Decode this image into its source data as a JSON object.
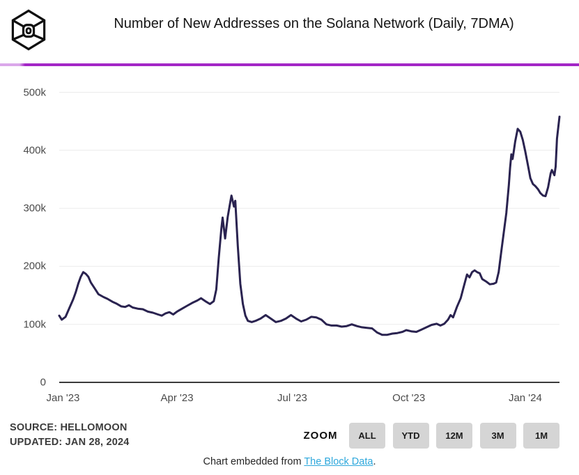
{
  "header": {
    "title": "Number of New Addresses on the Solana Network (Daily, 7DMA)",
    "logo": "the-block-logo"
  },
  "colors": {
    "accent_divider": "#A326C6",
    "series_line": "#2A2350",
    "link_blue": "#2EA8DC",
    "button_bg": "#D5D5D5",
    "grid": "#EBEBEB",
    "axis": "#3B3B3B",
    "tick_text": "#4B4B4B"
  },
  "chart_data": {
    "type": "line",
    "title": "Number of New Addresses on the Solana Network (Daily, 7DMA)",
    "xlabel": "",
    "ylabel": "",
    "ylim": [
      0,
      500000
    ],
    "x_range": [
      "2022-12-29",
      "2024-01-28"
    ],
    "grid": "horizontal",
    "legend": "none",
    "y_ticks": [
      {
        "label": "0",
        "value": 0
      },
      {
        "label": "100k",
        "value": 100000
      },
      {
        "label": "200k",
        "value": 200000
      },
      {
        "label": "300k",
        "value": 300000
      },
      {
        "label": "400k",
        "value": 400000
      },
      {
        "label": "500k",
        "value": 500000
      }
    ],
    "x_ticks": [
      {
        "label": "Jan '23",
        "date": "2023-01-01"
      },
      {
        "label": "Apr '23",
        "date": "2023-04-01"
      },
      {
        "label": "Jul '23",
        "date": "2023-07-01"
      },
      {
        "label": "Oct '23",
        "date": "2023-10-01"
      },
      {
        "label": "Jan '24",
        "date": "2024-01-01"
      }
    ],
    "series": [
      {
        "name": "new-addresses-7dma",
        "color": "#2A2350",
        "points": [
          [
            "2022-12-29",
            115000
          ],
          [
            "2022-12-31",
            108000
          ],
          [
            "2023-01-03",
            113000
          ],
          [
            "2023-01-06",
            128000
          ],
          [
            "2023-01-09",
            143000
          ],
          [
            "2023-01-11",
            155000
          ],
          [
            "2023-01-13",
            170000
          ],
          [
            "2023-01-15",
            182000
          ],
          [
            "2023-01-17",
            190000
          ],
          [
            "2023-01-19",
            187000
          ],
          [
            "2023-01-21",
            182000
          ],
          [
            "2023-01-23",
            172000
          ],
          [
            "2023-01-26",
            162000
          ],
          [
            "2023-01-29",
            152000
          ],
          [
            "2023-02-02",
            147000
          ],
          [
            "2023-02-05",
            144000
          ],
          [
            "2023-02-09",
            139000
          ],
          [
            "2023-02-12",
            136000
          ],
          [
            "2023-02-16",
            131000
          ],
          [
            "2023-02-19",
            130000
          ],
          [
            "2023-02-22",
            133000
          ],
          [
            "2023-02-25",
            129000
          ],
          [
            "2023-03-01",
            127000
          ],
          [
            "2023-03-05",
            126000
          ],
          [
            "2023-03-09",
            122000
          ],
          [
            "2023-03-13",
            120000
          ],
          [
            "2023-03-17",
            117000
          ],
          [
            "2023-03-20",
            115000
          ],
          [
            "2023-03-23",
            119000
          ],
          [
            "2023-03-26",
            121000
          ],
          [
            "2023-03-29",
            117000
          ],
          [
            "2023-04-01",
            122000
          ],
          [
            "2023-04-05",
            127000
          ],
          [
            "2023-04-09",
            132000
          ],
          [
            "2023-04-13",
            137000
          ],
          [
            "2023-04-17",
            141000
          ],
          [
            "2023-04-20",
            145000
          ],
          [
            "2023-04-24",
            139000
          ],
          [
            "2023-04-27",
            135000
          ],
          [
            "2023-04-30",
            140000
          ],
          [
            "2023-05-02",
            160000
          ],
          [
            "2023-05-04",
            215000
          ],
          [
            "2023-05-06",
            265000
          ],
          [
            "2023-05-07",
            284000
          ],
          [
            "2023-05-09",
            248000
          ],
          [
            "2023-05-11",
            285000
          ],
          [
            "2023-05-13",
            310000
          ],
          [
            "2023-05-14",
            322000
          ],
          [
            "2023-05-16",
            303000
          ],
          [
            "2023-05-17",
            313000
          ],
          [
            "2023-05-19",
            235000
          ],
          [
            "2023-05-21",
            170000
          ],
          [
            "2023-05-23",
            135000
          ],
          [
            "2023-05-25",
            115000
          ],
          [
            "2023-05-27",
            106000
          ],
          [
            "2023-05-30",
            104000
          ],
          [
            "2023-06-02",
            106000
          ],
          [
            "2023-06-06",
            110000
          ],
          [
            "2023-06-10",
            116000
          ],
          [
            "2023-06-14",
            110000
          ],
          [
            "2023-06-18",
            104000
          ],
          [
            "2023-06-22",
            106000
          ],
          [
            "2023-06-26",
            110000
          ],
          [
            "2023-06-30",
            116000
          ],
          [
            "2023-07-04",
            110000
          ],
          [
            "2023-07-08",
            105000
          ],
          [
            "2023-07-12",
            108000
          ],
          [
            "2023-07-16",
            113000
          ],
          [
            "2023-07-20",
            112000
          ],
          [
            "2023-07-24",
            108000
          ],
          [
            "2023-07-28",
            100000
          ],
          [
            "2023-08-01",
            98000
          ],
          [
            "2023-08-05",
            98000
          ],
          [
            "2023-08-09",
            96000
          ],
          [
            "2023-08-13",
            97000
          ],
          [
            "2023-08-17",
            100000
          ],
          [
            "2023-08-21",
            97000
          ],
          [
            "2023-08-25",
            95000
          ],
          [
            "2023-08-29",
            94000
          ],
          [
            "2023-09-02",
            93000
          ],
          [
            "2023-09-06",
            86000
          ],
          [
            "2023-09-10",
            82000
          ],
          [
            "2023-09-14",
            82000
          ],
          [
            "2023-09-18",
            84000
          ],
          [
            "2023-09-22",
            85000
          ],
          [
            "2023-09-26",
            87000
          ],
          [
            "2023-09-29",
            90000
          ],
          [
            "2023-10-03",
            88000
          ],
          [
            "2023-10-07",
            87000
          ],
          [
            "2023-10-11",
            91000
          ],
          [
            "2023-10-15",
            95000
          ],
          [
            "2023-10-19",
            99000
          ],
          [
            "2023-10-23",
            101000
          ],
          [
            "2023-10-26",
            98000
          ],
          [
            "2023-10-29",
            101000
          ],
          [
            "2023-11-01",
            108000
          ],
          [
            "2023-11-03",
            116000
          ],
          [
            "2023-11-05",
            112000
          ],
          [
            "2023-11-08",
            130000
          ],
          [
            "2023-11-11",
            145000
          ],
          [
            "2023-11-13",
            162000
          ],
          [
            "2023-11-15",
            178000
          ],
          [
            "2023-11-16",
            186000
          ],
          [
            "2023-11-18",
            181000
          ],
          [
            "2023-11-20",
            190000
          ],
          [
            "2023-11-22",
            193000
          ],
          [
            "2023-11-24",
            190000
          ],
          [
            "2023-11-26",
            188000
          ],
          [
            "2023-11-28",
            178000
          ],
          [
            "2023-12-01",
            174000
          ],
          [
            "2023-12-04",
            169000
          ],
          [
            "2023-12-07",
            170000
          ],
          [
            "2023-12-09",
            172000
          ],
          [
            "2023-12-11",
            190000
          ],
          [
            "2023-12-13",
            225000
          ],
          [
            "2023-12-15",
            258000
          ],
          [
            "2023-12-17",
            292000
          ],
          [
            "2023-12-19",
            340000
          ],
          [
            "2023-12-20",
            370000
          ],
          [
            "2023-12-21",
            393000
          ],
          [
            "2023-12-22",
            385000
          ],
          [
            "2023-12-23",
            400000
          ],
          [
            "2023-12-24",
            415000
          ],
          [
            "2023-12-26",
            437000
          ],
          [
            "2023-12-28",
            432000
          ],
          [
            "2023-12-30",
            418000
          ],
          [
            "2024-01-01",
            398000
          ],
          [
            "2024-01-03",
            375000
          ],
          [
            "2024-01-05",
            352000
          ],
          [
            "2024-01-07",
            342000
          ],
          [
            "2024-01-09",
            338000
          ],
          [
            "2024-01-11",
            333000
          ],
          [
            "2024-01-13",
            326000
          ],
          [
            "2024-01-15",
            322000
          ],
          [
            "2024-01-17",
            321000
          ],
          [
            "2024-01-19",
            336000
          ],
          [
            "2024-01-21",
            360000
          ],
          [
            "2024-01-22",
            366000
          ],
          [
            "2024-01-24",
            357000
          ],
          [
            "2024-01-25",
            372000
          ],
          [
            "2024-01-26",
            420000
          ],
          [
            "2024-01-28",
            458000
          ]
        ]
      }
    ]
  },
  "footer": {
    "source": "SOURCE: HELLOMOON",
    "updated": "UPDATED: JAN 28, 2024",
    "zoom_label": "ZOOM",
    "zoom_buttons": [
      "ALL",
      "YTD",
      "12M",
      "3M",
      "1M"
    ],
    "embed_prefix": "Chart embedded from ",
    "embed_link_text": "The Block Data",
    "embed_suffix": "."
  }
}
